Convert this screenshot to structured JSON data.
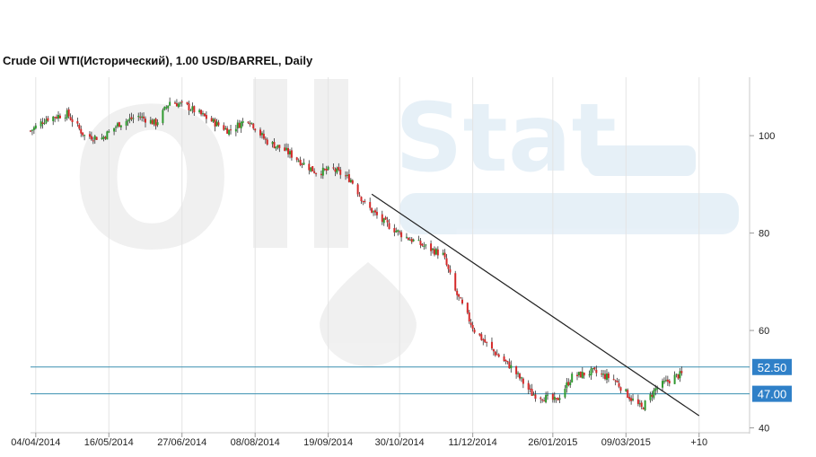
{
  "chart_data": {
    "type": "candlestick",
    "title": "Crude Oil WTI(Исторический), 1.00 USD/BARREL, Daily",
    "xlabel": "",
    "ylabel": "",
    "x_range": [
      "2014-04-01",
      "2015-05-19"
    ],
    "ylim": [
      39,
      112
    ],
    "y_ticks": [
      40,
      60,
      80,
      100
    ],
    "x_ticks": [
      {
        "date": "2014-04-04",
        "label": "04/04/2014"
      },
      {
        "date": "2014-05-16",
        "label": "16/05/2014"
      },
      {
        "date": "2014-06-27",
        "label": "27/06/2014"
      },
      {
        "date": "2014-08-08",
        "label": "08/08/2014"
      },
      {
        "date": "2014-09-19",
        "label": "19/09/2014"
      },
      {
        "date": "2014-10-30",
        "label": "30/10/2014"
      },
      {
        "date": "2014-12-11",
        "label": "11/12/2014"
      },
      {
        "date": "2015-01-26",
        "label": "26/01/2015"
      },
      {
        "date": "2015-03-09",
        "label": "09/03/2015"
      },
      {
        "date": "2015-04-20",
        "label": "+10"
      }
    ],
    "grid": {
      "vertical": true,
      "horizontal": false
    },
    "horizontal_levels": [
      {
        "value": 52.5,
        "label": "52.50"
      },
      {
        "value": 47.0,
        "label": "47.00"
      }
    ],
    "trendline": {
      "start": {
        "date": "2014-10-14",
        "value": 88.0
      },
      "end": {
        "date": "2015-04-20",
        "value": 42.5
      }
    },
    "series": [
      {
        "type": "candlestick",
        "colors": {
          "up": "#2e9a2e",
          "down": "#d42a2a"
        },
        "anchors": [
          {
            "date": "2014-04-01",
            "close": 101.0
          },
          {
            "date": "2014-04-10",
            "close": 103.5
          },
          {
            "date": "2014-04-22",
            "close": 104.5
          },
          {
            "date": "2014-05-02",
            "close": 100.0
          },
          {
            "date": "2014-05-12",
            "close": 99.5
          },
          {
            "date": "2014-05-22",
            "close": 102.5
          },
          {
            "date": "2014-06-02",
            "close": 104.0
          },
          {
            "date": "2014-06-12",
            "close": 102.5
          },
          {
            "date": "2014-06-20",
            "close": 107.0
          },
          {
            "date": "2014-06-30",
            "close": 106.0
          },
          {
            "date": "2014-07-14",
            "close": 103.0
          },
          {
            "date": "2014-07-24",
            "close": 101.0
          },
          {
            "date": "2014-08-04",
            "close": 103.5
          },
          {
            "date": "2014-08-14",
            "close": 99.0
          },
          {
            "date": "2014-08-25",
            "close": 97.0
          },
          {
            "date": "2014-09-04",
            "close": 94.5
          },
          {
            "date": "2014-09-12",
            "close": 92.5
          },
          {
            "date": "2014-09-22",
            "close": 93.0
          },
          {
            "date": "2014-10-02",
            "close": 91.0
          },
          {
            "date": "2014-10-10",
            "close": 86.0
          },
          {
            "date": "2014-10-20",
            "close": 82.5
          },
          {
            "date": "2014-11-01",
            "close": 79.5
          },
          {
            "date": "2014-11-12",
            "close": 77.5
          },
          {
            "date": "2014-11-24",
            "close": 75.5
          },
          {
            "date": "2014-12-01",
            "close": 68.0
          },
          {
            "date": "2014-12-12",
            "close": 60.0
          },
          {
            "date": "2014-12-22",
            "close": 56.0
          },
          {
            "date": "2015-01-02",
            "close": 52.5
          },
          {
            "date": "2015-01-14",
            "close": 47.0
          },
          {
            "date": "2015-01-28",
            "close": 45.5
          },
          {
            "date": "2015-02-06",
            "close": 50.5
          },
          {
            "date": "2015-02-18",
            "close": 51.5
          },
          {
            "date": "2015-03-02",
            "close": 50.0
          },
          {
            "date": "2015-03-12",
            "close": 46.0
          },
          {
            "date": "2015-03-18",
            "close": 44.0
          },
          {
            "date": "2015-03-26",
            "close": 48.0
          },
          {
            "date": "2015-04-06",
            "close": 50.5
          },
          {
            "date": "2015-04-10",
            "close": 51.0
          }
        ]
      }
    ]
  }
}
